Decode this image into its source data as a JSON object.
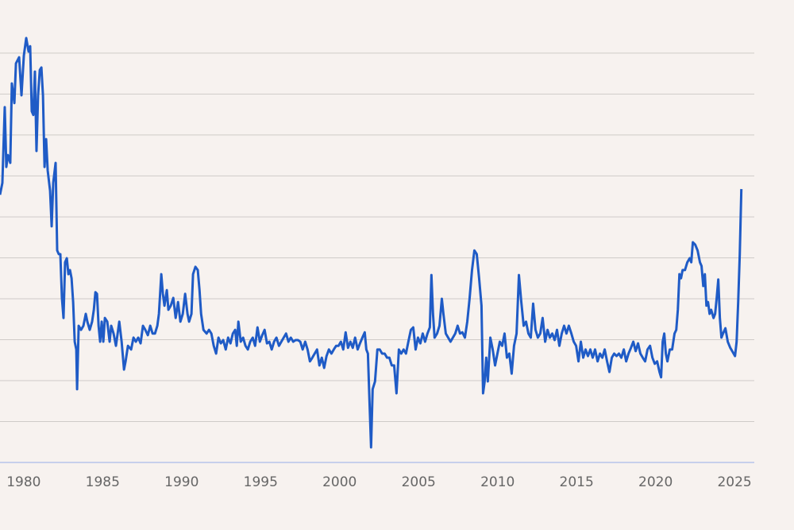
{
  "chart_data": {
    "type": "line",
    "color": "#1f5bc6",
    "xlim": [
      1978.5,
      2026.25
    ],
    "xticks": [
      1980,
      1985,
      1990,
      1995,
      2000,
      2005,
      2010,
      2015,
      2020,
      2025
    ],
    "ylim": [
      0,
      10.6
    ],
    "gridlines": [
      1,
      2,
      3,
      4,
      5,
      6,
      7,
      8,
      9,
      10
    ],
    "grid": true,
    "x": [
      1978.5,
      1978.65,
      1978.8,
      1978.9,
      1979.0,
      1979.15,
      1979.25,
      1979.41,
      1979.51,
      1979.71,
      1979.86,
      1980.01,
      1980.16,
      1980.31,
      1980.41,
      1980.51,
      1980.61,
      1980.71,
      1980.81,
      1980.91,
      1981.02,
      1981.12,
      1981.22,
      1981.32,
      1981.42,
      1981.52,
      1981.67,
      1981.77,
      1981.87,
      1982.02,
      1982.12,
      1982.22,
      1982.32,
      1982.42,
      1982.52,
      1982.62,
      1982.73,
      1982.83,
      1982.93,
      1983.03,
      1983.13,
      1983.23,
      1983.33,
      1983.38,
      1983.48,
      1983.63,
      1983.78,
      1983.93,
      1984.03,
      1984.18,
      1984.33,
      1984.44,
      1984.54,
      1984.64,
      1984.74,
      1984.84,
      1984.94,
      1985.04,
      1985.14,
      1985.29,
      1985.44,
      1985.54,
      1985.69,
      1985.84,
      1986.05,
      1986.2,
      1986.35,
      1986.45,
      1986.6,
      1986.8,
      1986.95,
      1987.1,
      1987.25,
      1987.4,
      1987.55,
      1987.7,
      1987.86,
      1988.01,
      1988.16,
      1988.31,
      1988.46,
      1988.56,
      1988.71,
      1988.81,
      1988.91,
      1989.06,
      1989.16,
      1989.31,
      1989.47,
      1989.62,
      1989.77,
      1989.92,
      1990.07,
      1990.22,
      1990.37,
      1990.47,
      1990.62,
      1990.72,
      1990.87,
      1991.02,
      1991.13,
      1991.23,
      1991.38,
      1991.58,
      1991.73,
      1991.88,
      1992.03,
      1992.18,
      1992.33,
      1992.48,
      1992.63,
      1992.79,
      1992.94,
      1993.09,
      1993.24,
      1993.39,
      1993.49,
      1993.59,
      1993.74,
      1993.89,
      1994.04,
      1994.19,
      1994.34,
      1994.5,
      1994.65,
      1994.8,
      1994.95,
      1995.1,
      1995.25,
      1995.4,
      1995.55,
      1995.7,
      1995.85,
      1996.0,
      1996.16,
      1996.31,
      1996.46,
      1996.61,
      1996.76,
      1996.91,
      1997.06,
      1997.21,
      1997.36,
      1997.51,
      1997.66,
      1997.82,
      1997.97,
      1998.12,
      1998.27,
      1998.42,
      1998.57,
      1998.72,
      1998.87,
      1999.02,
      1999.17,
      1999.32,
      1999.48,
      1999.63,
      1999.78,
      1999.93,
      2000.08,
      2000.23,
      2000.38,
      2000.53,
      2000.68,
      2000.83,
      2000.98,
      2001.14,
      2001.29,
      2001.44,
      2001.59,
      2001.69,
      2001.79,
      2001.89,
      2001.99,
      2002.09,
      2002.24,
      2002.39,
      2002.54,
      2002.69,
      2002.85,
      2003.0,
      2003.15,
      2003.3,
      2003.45,
      2003.6,
      2003.75,
      2003.9,
      2004.05,
      2004.2,
      2004.35,
      2004.51,
      2004.66,
      2004.81,
      2004.96,
      2005.11,
      2005.26,
      2005.41,
      2005.56,
      2005.71,
      2005.81,
      2005.91,
      2006.01,
      2006.17,
      2006.32,
      2006.47,
      2006.57,
      2006.72,
      2006.87,
      2007.02,
      2007.17,
      2007.32,
      2007.47,
      2007.62,
      2007.77,
      2007.93,
      2008.08,
      2008.23,
      2008.38,
      2008.53,
      2008.68,
      2008.83,
      2008.98,
      2009.08,
      2009.18,
      2009.28,
      2009.38,
      2009.54,
      2009.69,
      2009.84,
      2009.99,
      2010.14,
      2010.29,
      2010.44,
      2010.59,
      2010.74,
      2010.89,
      2011.04,
      2011.2,
      2011.35,
      2011.5,
      2011.65,
      2011.8,
      2011.95,
      2012.1,
      2012.25,
      2012.4,
      2012.55,
      2012.7,
      2012.85,
      2013.01,
      2013.16,
      2013.31,
      2013.46,
      2013.61,
      2013.76,
      2013.91,
      2014.06,
      2014.21,
      2014.36,
      2014.51,
      2014.67,
      2014.82,
      2014.97,
      2015.12,
      2015.27,
      2015.42,
      2015.57,
      2015.72,
      2015.87,
      2016.02,
      2016.17,
      2016.33,
      2016.48,
      2016.63,
      2016.78,
      2016.93,
      2017.08,
      2017.23,
      2017.38,
      2017.53,
      2017.68,
      2017.83,
      2017.99,
      2018.14,
      2018.29,
      2018.44,
      2018.59,
      2018.74,
      2018.89,
      2019.04,
      2019.19,
      2019.34,
      2019.49,
      2019.65,
      2019.8,
      2019.95,
      2020.1,
      2020.25,
      2020.35,
      2020.45,
      2020.55,
      2020.65,
      2020.75,
      2020.9,
      2021.05,
      2021.2,
      2021.31,
      2021.41,
      2021.51,
      2021.61,
      2021.71,
      2021.86,
      2022.01,
      2022.16,
      2022.26,
      2022.36,
      2022.51,
      2022.66,
      2022.81,
      2022.91,
      2023.02,
      2023.12,
      2023.22,
      2023.32,
      2023.42,
      2023.52,
      2023.67,
      2023.77,
      2023.87,
      2023.97,
      2024.07,
      2024.17,
      2024.27,
      2024.42,
      2024.57,
      2024.73,
      2024.88,
      2025.03,
      2025.13,
      2025.23,
      2025.33,
      2025.43
    ],
    "values": [
      6.54,
      6.83,
      8.68,
      7.22,
      7.51,
      7.32,
      9.26,
      8.78,
      9.75,
      9.9,
      8.97,
      9.94,
      10.37,
      10.04,
      10.17,
      8.58,
      8.49,
      9.55,
      7.61,
      8.97,
      9.59,
      9.65,
      8.97,
      7.22,
      7.9,
      7.13,
      6.64,
      5.77,
      6.83,
      7.32,
      5.18,
      5.09,
      5.09,
      4.02,
      3.53,
      4.89,
      4.99,
      4.6,
      4.7,
      4.5,
      3.92,
      2.95,
      2.76,
      1.79,
      3.34,
      3.24,
      3.34,
      3.63,
      3.44,
      3.24,
      3.44,
      3.73,
      4.16,
      4.12,
      3.34,
      2.95,
      3.44,
      2.95,
      3.53,
      3.44,
      2.95,
      3.34,
      3.15,
      2.85,
      3.44,
      2.95,
      2.27,
      2.47,
      2.85,
      2.76,
      3.05,
      2.95,
      3.05,
      2.91,
      3.34,
      3.24,
      3.11,
      3.34,
      3.15,
      3.15,
      3.34,
      3.63,
      4.6,
      4.12,
      3.83,
      4.21,
      3.73,
      3.83,
      4.02,
      3.53,
      3.92,
      3.44,
      3.63,
      4.12,
      3.63,
      3.44,
      3.63,
      4.6,
      4.78,
      4.7,
      4.21,
      3.63,
      3.24,
      3.15,
      3.24,
      3.15,
      2.85,
      2.66,
      3.05,
      2.91,
      2.99,
      2.76,
      3.05,
      2.91,
      3.15,
      3.24,
      2.85,
      3.44,
      2.95,
      3.05,
      2.85,
      2.76,
      2.95,
      3.05,
      2.85,
      3.3,
      2.95,
      3.11,
      3.24,
      2.91,
      2.95,
      2.76,
      2.95,
      3.05,
      2.85,
      2.95,
      3.05,
      3.15,
      2.95,
      3.05,
      2.95,
      2.99,
      2.99,
      2.95,
      2.76,
      2.95,
      2.76,
      2.47,
      2.56,
      2.66,
      2.76,
      2.37,
      2.56,
      2.31,
      2.6,
      2.76,
      2.66,
      2.76,
      2.85,
      2.85,
      2.95,
      2.76,
      3.18,
      2.8,
      2.95,
      2.8,
      3.05,
      2.76,
      2.91,
      3.05,
      3.18,
      2.76,
      2.66,
      1.5,
      0.37,
      1.79,
      1.98,
      2.76,
      2.76,
      2.66,
      2.66,
      2.56,
      2.56,
      2.37,
      2.37,
      1.69,
      2.76,
      2.66,
      2.76,
      2.66,
      2.95,
      3.24,
      3.3,
      2.76,
      3.05,
      2.91,
      3.15,
      2.95,
      3.15,
      3.3,
      4.58,
      3.63,
      3.05,
      3.15,
      3.34,
      4.0,
      3.63,
      3.15,
      3.05,
      2.95,
      3.05,
      3.15,
      3.34,
      3.15,
      3.18,
      3.05,
      3.44,
      4.02,
      4.7,
      5.18,
      5.09,
      4.5,
      3.83,
      1.69,
      1.98,
      2.56,
      1.98,
      3.05,
      2.76,
      2.37,
      2.66,
      2.95,
      2.85,
      3.15,
      2.56,
      2.66,
      2.17,
      2.85,
      3.15,
      4.58,
      3.92,
      3.34,
      3.44,
      3.15,
      3.05,
      3.88,
      3.24,
      3.05,
      3.15,
      3.53,
      2.95,
      3.24,
      3.05,
      3.15,
      2.99,
      3.24,
      2.85,
      3.15,
      3.34,
      3.15,
      3.34,
      3.15,
      2.95,
      2.85,
      2.47,
      2.95,
      2.56,
      2.76,
      2.6,
      2.76,
      2.56,
      2.76,
      2.47,
      2.66,
      2.56,
      2.76,
      2.47,
      2.21,
      2.56,
      2.66,
      2.6,
      2.66,
      2.56,
      2.76,
      2.47,
      2.66,
      2.8,
      2.95,
      2.72,
      2.91,
      2.66,
      2.56,
      2.47,
      2.76,
      2.85,
      2.56,
      2.41,
      2.47,
      2.21,
      2.08,
      2.95,
      3.15,
      2.66,
      2.47,
      2.76,
      2.76,
      3.15,
      3.24,
      3.73,
      4.6,
      4.5,
      4.7,
      4.7,
      4.89,
      4.99,
      4.89,
      5.38,
      5.32,
      5.18,
      4.89,
      4.8,
      4.31,
      4.6,
      3.83,
      3.92,
      3.63,
      3.73,
      3.53,
      3.63,
      4.02,
      4.47,
      3.53,
      3.05,
      3.15,
      3.28,
      2.95,
      2.8,
      2.7,
      2.6,
      2.95,
      3.92,
      5.09,
      6.68
    ]
  }
}
